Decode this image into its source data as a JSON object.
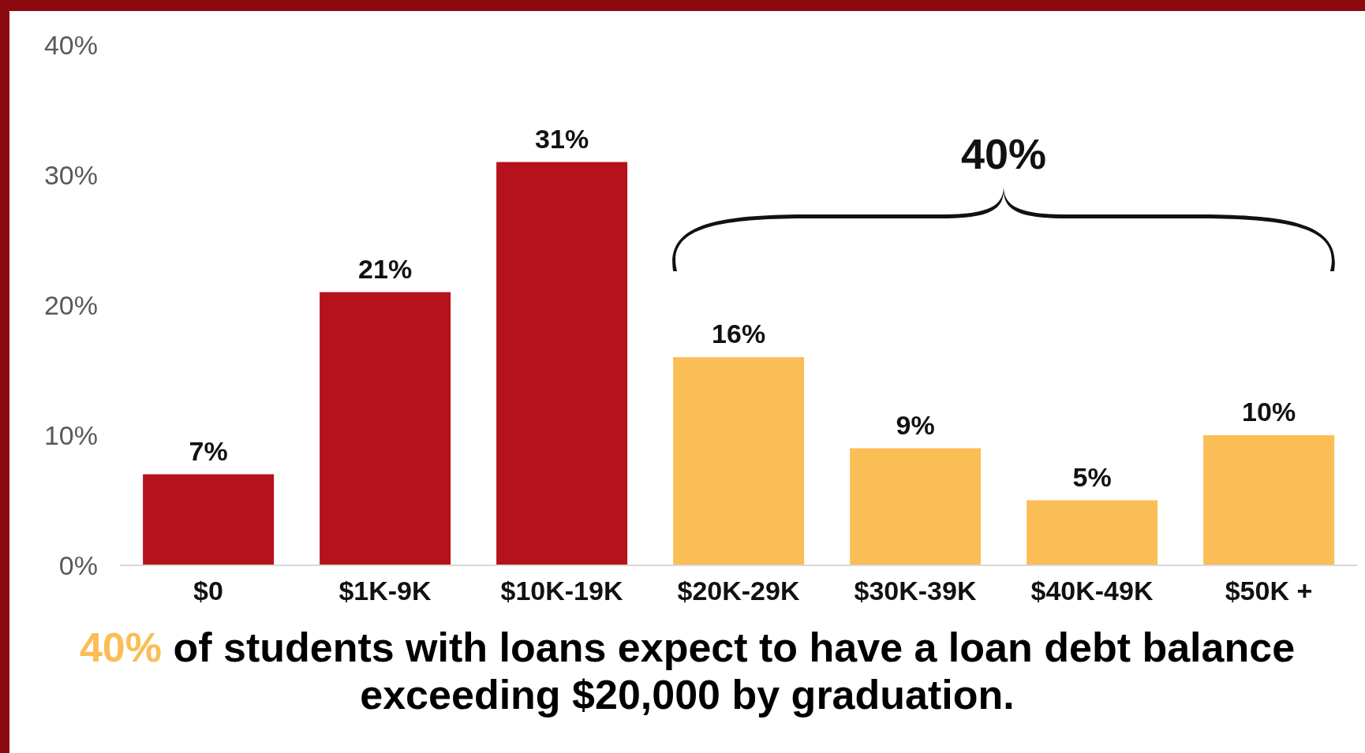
{
  "chart_data": {
    "type": "bar",
    "title": "40% of students with loans expect to have a loan debt balance exceeding $20,000 by graduation.",
    "categories": [
      "$0",
      "$1K-9K",
      "$10K-19K",
      "$20K-29K",
      "$30K-39K",
      "$40K-49K",
      "$50K +"
    ],
    "values": [
      7,
      21,
      31,
      16,
      9,
      5,
      10
    ],
    "colors": [
      "#b5121b",
      "#b5121b",
      "#b5121b",
      "#fbbd55",
      "#fbbd55",
      "#fbbd55",
      "#fbbd55"
    ],
    "value_labels": [
      "7%",
      "21%",
      "31%",
      "16%",
      "9%",
      "5%",
      "10%"
    ],
    "ylim": [
      0,
      40
    ],
    "yticks": [
      {
        "value": 0,
        "label": "0%"
      },
      {
        "value": 10,
        "label": "10%"
      },
      {
        "value": 20,
        "label": "20%"
      },
      {
        "value": 30,
        "label": "30%"
      },
      {
        "value": 40,
        "label": "40%"
      }
    ],
    "annotations": [
      "40%"
    ]
  }
}
